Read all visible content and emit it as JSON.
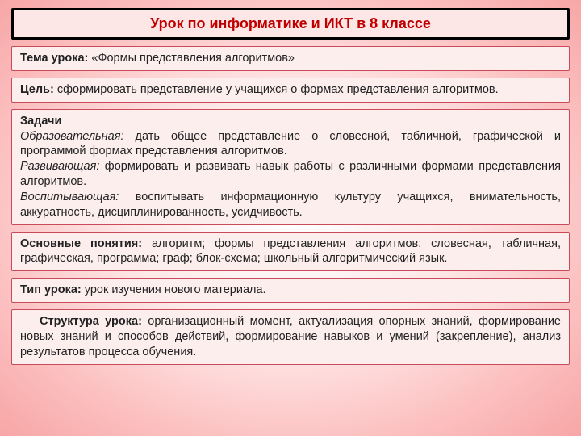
{
  "colors": {
    "title_text": "#c00000",
    "title_border": "#000000",
    "box_border": "#c94a5a",
    "box_bg": "#fdeeee",
    "bg_center": "#ffffff",
    "bg_outer": "#f7a6a6"
  },
  "title": "Урок по информатике и ИКТ в 8 классе",
  "topic": {
    "label": "Тема урока:",
    "text": " «Формы представления алгоритмов»"
  },
  "goal": {
    "label": "Цель:",
    "text": " сформировать представление у учащихся о формах представления алгоритмов."
  },
  "tasks": {
    "label": "Задачи",
    "edu_label": "Образовательная:",
    "edu_text": " дать общее представление о словесной, табличной, графической и программой формах представления алгоритмов.",
    "dev_label": "Развивающая:",
    "dev_text": " формировать и развивать навык работы с различными формами представления алгоритмов.",
    "vos_label": "Воспитывающая:",
    "vos_text": " воспитывать информационную культуру учащихся, внимательность, аккуратность, дисциплинированность, усидчивость."
  },
  "concepts": {
    "label": "Основные понятия:",
    "text": " алгоритм; формы представления алгоритмов: словесная, табличная, графическая, программа; граф; блок-схема; школьный алгоритмический язык."
  },
  "type": {
    "label": "Тип урока:",
    "text": " урок изучения нового материала."
  },
  "structure": {
    "label": "Структура урока:",
    "text": " организационный момент, актуализация опорных знаний, формирование новых знаний и способов действий, формирование навыков и умений (закрепление), анализ результатов процесса обучения."
  }
}
